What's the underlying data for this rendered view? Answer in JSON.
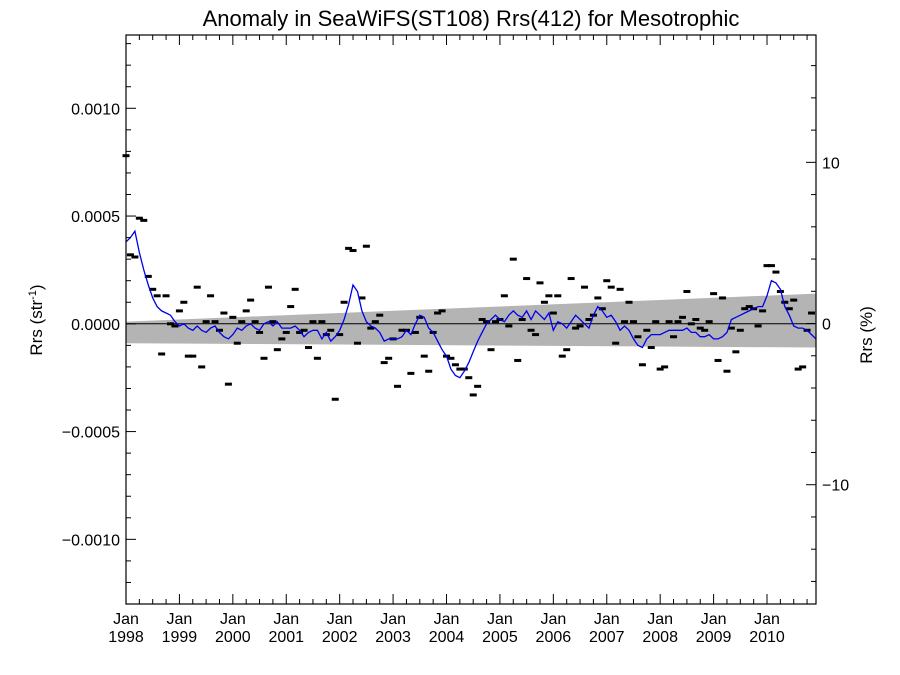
{
  "chart_data": {
    "type": "scatter",
    "title": "Anomaly in SeaWiFS(ST108) Rrs(412) for Mesotrophic",
    "ylabel_left": {
      "base": "Rrs (str",
      "sup": "-1",
      "close": ")"
    },
    "ylabel_right": "Rrs (%)",
    "xlim": [
      1998.0,
      2010.917
    ],
    "ylim_left": [
      -0.0013,
      0.00134
    ],
    "ylim_right": [
      -17.4,
      17.9
    ],
    "grid": false,
    "y_ticks_left": [
      {
        "value": 0.001,
        "label": "0.0010"
      },
      {
        "value": 0.0005,
        "label": "0.0005"
      },
      {
        "value": 0.0,
        "label": "0.0000"
      },
      {
        "value": -0.0005,
        "label": "−0.0005"
      },
      {
        "value": -0.001,
        "label": "−0.0010"
      }
    ],
    "y_ticks_right": [
      {
        "value": 10,
        "label": "10"
      },
      {
        "value": 0,
        "label": "0"
      },
      {
        "value": -10,
        "label": "−10"
      }
    ],
    "x_ticks": [
      {
        "value": 1998,
        "line1": "Jan",
        "line2": "1998"
      },
      {
        "value": 1999,
        "line1": "Jan",
        "line2": "1999"
      },
      {
        "value": 2000,
        "line1": "Jan",
        "line2": "2000"
      },
      {
        "value": 2001,
        "line1": "Jan",
        "line2": "2001"
      },
      {
        "value": 2002,
        "line1": "Jan",
        "line2": "2002"
      },
      {
        "value": 2003,
        "line1": "Jan",
        "line2": "2003"
      },
      {
        "value": 2004,
        "line1": "Jan",
        "line2": "2004"
      },
      {
        "value": 2005,
        "line1": "Jan",
        "line2": "2005"
      },
      {
        "value": 2006,
        "line1": "Jan",
        "line2": "2006"
      },
      {
        "value": 2007,
        "line1": "Jan",
        "line2": "2007"
      },
      {
        "value": 2008,
        "line1": "Jan",
        "line2": "2008"
      },
      {
        "value": 2009,
        "line1": "Jan",
        "line2": "2009"
      },
      {
        "value": 2010,
        "line1": "Jan",
        "line2": "2010"
      }
    ],
    "trend_band": {
      "x": [
        1998.0,
        2010.917
      ],
      "upper": [
        1e-05,
        0.00014
      ],
      "lower": [
        -9e-05,
        -0.00011
      ]
    },
    "scatter": {
      "x": [
        1998.0,
        1998.083,
        1998.167,
        1998.25,
        1998.333,
        1998.417,
        1998.5,
        1998.583,
        1998.667,
        1998.75,
        1998.833,
        1998.917,
        1999.0,
        1999.083,
        1999.167,
        1999.25,
        1999.333,
        1999.417,
        1999.5,
        1999.583,
        1999.667,
        1999.75,
        1999.833,
        1999.917,
        2000.0,
        2000.083,
        2000.167,
        2000.25,
        2000.333,
        2000.417,
        2000.5,
        2000.583,
        2000.667,
        2000.75,
        2000.833,
        2000.917,
        2001.0,
        2001.083,
        2001.167,
        2001.25,
        2001.333,
        2001.417,
        2001.5,
        2001.583,
        2001.667,
        2001.75,
        2001.833,
        2001.917,
        2002.0,
        2002.083,
        2002.167,
        2002.25,
        2002.333,
        2002.417,
        2002.5,
        2002.583,
        2002.667,
        2002.75,
        2002.833,
        2002.917,
        2003.0,
        2003.083,
        2003.167,
        2003.25,
        2003.333,
        2003.417,
        2003.5,
        2003.583,
        2003.667,
        2003.75,
        2003.833,
        2003.917,
        2004.0,
        2004.083,
        2004.167,
        2004.25,
        2004.333,
        2004.417,
        2004.5,
        2004.583,
        2004.667,
        2004.75,
        2004.833,
        2004.917,
        2005.0,
        2005.083,
        2005.167,
        2005.25,
        2005.333,
        2005.417,
        2005.5,
        2005.583,
        2005.667,
        2005.75,
        2005.833,
        2005.917,
        2006.0,
        2006.083,
        2006.167,
        2006.25,
        2006.333,
        2006.417,
        2006.5,
        2006.583,
        2006.667,
        2006.75,
        2006.833,
        2006.917,
        2007.0,
        2007.083,
        2007.167,
        2007.25,
        2007.333,
        2007.417,
        2007.5,
        2007.583,
        2007.667,
        2007.75,
        2007.833,
        2007.917,
        2008.0,
        2008.083,
        2008.167,
        2008.25,
        2008.333,
        2008.417,
        2008.5,
        2008.583,
        2008.667,
        2008.75,
        2008.833,
        2008.917,
        2009.0,
        2009.083,
        2009.167,
        2009.25,
        2009.333,
        2009.417,
        2009.5,
        2009.583,
        2009.667,
        2009.75,
        2009.833,
        2009.917,
        2010.0,
        2010.083,
        2010.167,
        2010.25,
        2010.333,
        2010.417,
        2010.5,
        2010.583,
        2010.667,
        2010.75,
        2010.833
      ],
      "y": [
        0.00078,
        0.00032,
        0.00031,
        0.00049,
        0.00048,
        0.00022,
        0.00016,
        0.00013,
        -0.00014,
        0.00013,
        0.0,
        -1e-05,
        6e-05,
        0.0001,
        -0.00015,
        -0.00015,
        0.00017,
        -0.0002,
        1e-05,
        0.00013,
        1e-05,
        -3e-05,
        5e-05,
        -0.00028,
        3e-05,
        -9e-05,
        1e-05,
        6e-05,
        0.00011,
        1e-05,
        -4e-05,
        -0.00016,
        0.00017,
        1e-05,
        -0.00012,
        -7e-05,
        -4e-05,
        8e-05,
        0.00016,
        -4e-05,
        -3e-05,
        -0.00011,
        1e-05,
        -0.00016,
        1e-05,
        -5e-05,
        -3e-05,
        -0.00035,
        -5e-05,
        0.0001,
        0.00035,
        0.00034,
        -9e-05,
        0.00012,
        0.00036,
        -2e-05,
        1e-05,
        4e-05,
        -0.00018,
        -0.00016,
        -7e-05,
        -0.00029,
        -3e-05,
        -3e-05,
        -0.00023,
        -4e-05,
        3e-05,
        -0.00015,
        -0.00022,
        -4e-05,
        5e-05,
        6e-05,
        -0.00015,
        -0.00016,
        -0.00019,
        -0.00021,
        -0.00021,
        -0.00025,
        -0.00033,
        -0.00029,
        2e-05,
        1e-05,
        -0.00012,
        1e-05,
        2e-05,
        0.00013,
        -1e-05,
        0.0003,
        -0.00017,
        2e-05,
        0.00021,
        -3e-05,
        -5e-05,
        0.00019,
        0.0001,
        0.00013,
        5e-05,
        0.00013,
        -0.00015,
        -0.00012,
        0.00021,
        -2e-05,
        -1e-05,
        0.00017,
        2e-05,
        4e-05,
        0.00012,
        7e-05,
        0.0002,
        0.00017,
        -9e-05,
        0.00016,
        1e-05,
        0.0001,
        1e-05,
        -6e-05,
        -0.00019,
        -3e-05,
        -0.00011,
        1e-05,
        -0.00021,
        -0.0002,
        1e-05,
        -6e-05,
        1e-05,
        3e-05,
        0.00015,
        0.0,
        2e-05,
        -2e-05,
        -3e-05,
        1e-05,
        0.00014,
        -0.00017,
        0.00012,
        -0.00022,
        -2e-05,
        -0.00013,
        -3e-05,
        7e-05,
        8e-05,
        7e-05,
        -1e-05,
        6e-05,
        0.00027,
        0.00027,
        0.00024,
        0.00015,
        0.0001,
        7e-05,
        0.00011,
        -0.00021,
        -0.0002,
        -3e-05,
        5e-05
      ]
    },
    "moving_average": {
      "color": "#0000ee",
      "x": [
        1998.0,
        1998.083,
        1998.167,
        1998.25,
        1998.333,
        1998.417,
        1998.5,
        1998.583,
        1998.667,
        1998.75,
        1998.833,
        1998.917,
        1999.0,
        1999.083,
        1999.167,
        1999.25,
        1999.333,
        1999.417,
        1999.5,
        1999.583,
        1999.667,
        1999.75,
        1999.833,
        1999.917,
        2000.0,
        2000.083,
        2000.167,
        2000.25,
        2000.333,
        2000.417,
        2000.5,
        2000.583,
        2000.667,
        2000.75,
        2000.833,
        2000.917,
        2001.0,
        2001.083,
        2001.167,
        2001.25,
        2001.333,
        2001.417,
        2001.5,
        2001.583,
        2001.667,
        2001.75,
        2001.833,
        2001.917,
        2002.0,
        2002.083,
        2002.167,
        2002.25,
        2002.333,
        2002.417,
        2002.5,
        2002.583,
        2002.667,
        2002.75,
        2002.833,
        2002.917,
        2003.0,
        2003.083,
        2003.167,
        2003.25,
        2003.333,
        2003.417,
        2003.5,
        2003.583,
        2003.667,
        2003.75,
        2003.833,
        2003.917,
        2004.0,
        2004.083,
        2004.167,
        2004.25,
        2004.333,
        2004.417,
        2004.5,
        2004.583,
        2004.667,
        2004.75,
        2004.833,
        2004.917,
        2005.0,
        2005.083,
        2005.167,
        2005.25,
        2005.333,
        2005.417,
        2005.5,
        2005.583,
        2005.667,
        2005.75,
        2005.833,
        2005.917,
        2006.0,
        2006.083,
        2006.167,
        2006.25,
        2006.333,
        2006.417,
        2006.5,
        2006.583,
        2006.667,
        2006.75,
        2006.833,
        2006.917,
        2007.0,
        2007.083,
        2007.167,
        2007.25,
        2007.333,
        2007.417,
        2007.5,
        2007.583,
        2007.667,
        2007.75,
        2007.833,
        2007.917,
        2008.0,
        2008.083,
        2008.167,
        2008.25,
        2008.333,
        2008.417,
        2008.5,
        2008.583,
        2008.667,
        2008.75,
        2008.833,
        2008.917,
        2009.0,
        2009.083,
        2009.167,
        2009.25,
        2009.333,
        2009.417,
        2009.5,
        2009.583,
        2009.667,
        2009.75,
        2009.833,
        2009.917,
        2010.0,
        2010.083,
        2010.167,
        2010.25,
        2010.333,
        2010.417,
        2010.5,
        2010.583,
        2010.667,
        2010.75,
        2010.833,
        2010.917
      ],
      "y": [
        0.00038,
        0.0004,
        0.00043,
        0.00033,
        0.00025,
        0.00018,
        0.00012,
        8e-05,
        6e-05,
        5e-05,
        4e-05,
        1e-05,
        -1e-05,
        0.0,
        -2e-05,
        -3e-05,
        -1e-05,
        -3e-05,
        -4e-05,
        -2e-05,
        -1e-05,
        -4e-05,
        -6e-05,
        -7e-05,
        -5e-05,
        -2e-05,
        -3e-05,
        -1e-05,
        0.0,
        -2e-05,
        -3e-05,
        0.0,
        1e-05,
        -1e-05,
        1e-05,
        -2e-05,
        -2e-05,
        -2e-05,
        -1e-05,
        -3e-05,
        -6e-05,
        -4e-05,
        -3e-05,
        -3e-05,
        -7e-05,
        -4e-05,
        -8e-05,
        -6e-05,
        -3e-05,
        2e-05,
        9e-05,
        0.00018,
        0.00015,
        6e-05,
        1e-05,
        -1e-05,
        -2e-05,
        -4e-05,
        -8e-05,
        -7e-05,
        -7e-05,
        -7e-05,
        -6e-05,
        -3e-05,
        -5e-05,
        0.0,
        4e-05,
        3e-05,
        -2e-05,
        -4e-05,
        -8e-05,
        -0.00012,
        -0.00015,
        -0.00021,
        -0.00024,
        -0.00025,
        -0.00022,
        -0.00018,
        -0.00013,
        -8e-05,
        -4e-05,
        0.0,
        2e-05,
        4e-05,
        2e-05,
        1e-05,
        4e-05,
        6e-05,
        4e-05,
        3e-05,
        6e-05,
        2e-05,
        6e-05,
        4e-05,
        2e-05,
        5e-05,
        -3e-05,
        1e-05,
        0.0,
        -2e-05,
        1e-05,
        4e-05,
        2e-05,
        0.0,
        -2e-05,
        4e-05,
        8e-05,
        6e-05,
        3e-05,
        4e-05,
        1e-05,
        -3e-05,
        -1e-05,
        -3e-05,
        -7e-05,
        -0.0001,
        -0.00011,
        -7e-05,
        -5e-05,
        -5e-05,
        -5e-05,
        -4e-05,
        -3e-05,
        -3e-05,
        -3e-05,
        -3e-05,
        -2e-05,
        -4e-05,
        -4e-05,
        -6e-05,
        -6e-05,
        -5e-05,
        -7e-05,
        -7e-05,
        -6e-05,
        -4e-05,
        2e-05,
        3e-05,
        4e-05,
        5e-05,
        6e-05,
        7e-05,
        8e-05,
        8e-05,
        0.00013,
        0.0002,
        0.00019,
        0.00016,
        8e-05,
        4e-05,
        -1e-05,
        -2e-05,
        -2e-05,
        -3e-05,
        -5e-05,
        -7e-05
      ]
    }
  }
}
